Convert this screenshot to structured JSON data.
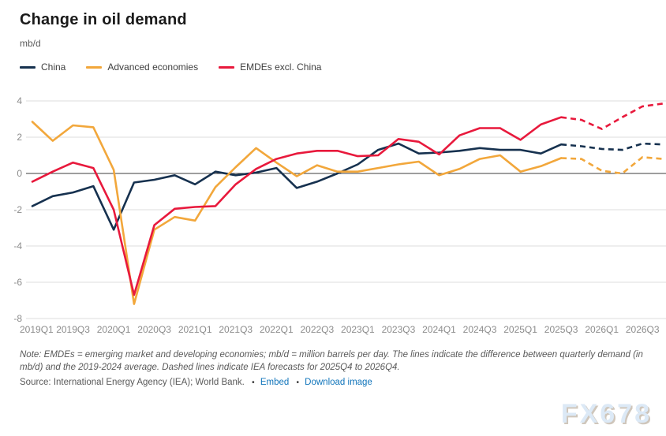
{
  "page": {
    "title": "Change in oil demand",
    "unit": "mb/d",
    "watermark": "FX678"
  },
  "legend": [
    {
      "label": "China",
      "color": "#16314f"
    },
    {
      "label": "Advanced economies",
      "color": "#f2a73b"
    },
    {
      "label": "EMDEs excl. China",
      "color": "#e8193c"
    }
  ],
  "note": "Note: EMDEs = emerging market and developing economies; mb/d = million barrels per day. The lines indicate the difference between quarterly demand (in mb/d) and the 2019-2024 average. Dashed lines indicate IEA forecasts for 2025Q4 to 2026Q4.",
  "source": {
    "text": "Source: International Energy Agency (IEA); World Bank.",
    "separator": "•",
    "embed_label": "Embed",
    "download_label": "Download image"
  },
  "chart_data": {
    "type": "line",
    "title": "Change in oil demand",
    "ylabel": "mb/d",
    "ylim": [
      -8,
      4
    ],
    "yticks": [
      4,
      2,
      0,
      -2,
      -4,
      -6,
      -8
    ],
    "grid": "horizontal",
    "legend_position": "top",
    "forecast_start_index": 26,
    "forecast_style": "dashed",
    "x": [
      "2019Q1",
      "2019Q2",
      "2019Q3",
      "2019Q4",
      "2020Q1",
      "2020Q2",
      "2020Q3",
      "2020Q4",
      "2021Q1",
      "2021Q2",
      "2021Q3",
      "2021Q4",
      "2022Q1",
      "2022Q2",
      "2022Q3",
      "2022Q4",
      "2023Q1",
      "2023Q2",
      "2023Q3",
      "2023Q4",
      "2024Q1",
      "2024Q2",
      "2024Q3",
      "2024Q4",
      "2025Q1",
      "2025Q2",
      "2025Q3",
      "2025Q4",
      "2026Q1",
      "2026Q2",
      "2026Q3",
      "2026Q4"
    ],
    "xtick_every": 2,
    "series": [
      {
        "name": "China",
        "color": "#16314f",
        "values": [
          -1.8,
          -1.25,
          -1.05,
          -0.7,
          -3.1,
          -0.5,
          -0.35,
          -0.1,
          -0.6,
          0.1,
          -0.1,
          0.05,
          0.3,
          -0.8,
          -0.45,
          0.0,
          0.5,
          1.3,
          1.65,
          1.1,
          1.15,
          1.25,
          1.4,
          1.3,
          1.3,
          1.1,
          1.6,
          1.5,
          1.35,
          1.3,
          1.65,
          1.6
        ]
      },
      {
        "name": "Advanced economies",
        "color": "#f2a73b",
        "values": [
          2.85,
          1.8,
          2.65,
          2.55,
          0.2,
          -7.2,
          -3.1,
          -2.4,
          -2.6,
          -0.75,
          0.35,
          1.4,
          0.6,
          -0.15,
          0.45,
          0.1,
          0.1,
          0.3,
          0.5,
          0.65,
          -0.1,
          0.25,
          0.8,
          1.0,
          0.1,
          0.4,
          0.85,
          0.8,
          0.15,
          0.0,
          0.9,
          0.8
        ]
      },
      {
        "name": "EMDEs excl. China",
        "color": "#e8193c",
        "values": [
          -0.45,
          0.1,
          0.6,
          0.3,
          -2.0,
          -6.7,
          -2.85,
          -1.95,
          -1.85,
          -1.8,
          -0.6,
          0.25,
          0.8,
          1.1,
          1.25,
          1.25,
          0.95,
          1.0,
          1.9,
          1.75,
          1.05,
          2.1,
          2.5,
          2.5,
          1.85,
          2.7,
          3.1,
          2.95,
          2.45,
          3.1,
          3.7,
          3.85
        ]
      }
    ],
    "colors": {
      "grid": "#dddddd",
      "zero_line": "#3d3d3d",
      "tick_label": "#8c8c8c"
    }
  }
}
